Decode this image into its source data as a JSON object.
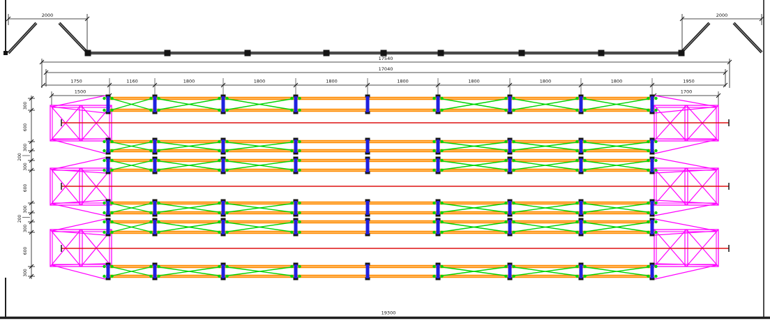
{
  "drawing": {
    "type": "structural-cad-plan",
    "dimensions": {
      "top_left_wing": "2000",
      "top_right_wing": "2000",
      "overall_top": "17540",
      "overall_second": "17040",
      "bays": [
        "1750",
        "1160",
        "1800",
        "1800",
        "1800",
        "1800",
        "1800",
        "1800",
        "1800",
        "1950"
      ],
      "left_sub": "1500",
      "right_sub": "1700",
      "bottom_overall": "19300",
      "vertical_chain": [
        "300",
        "600",
        "300",
        "200",
        "300",
        "600",
        "300",
        "200",
        "300",
        "600",
        "300"
      ]
    },
    "colors": {
      "chord": "#ff8a00",
      "chord_core": "#ffd9a3",
      "bracing": "#00d400",
      "post": "#2020dd",
      "cap": "#151515",
      "end_frame": "#ff00ff",
      "axis": "#dd1111",
      "structure": "#1f1f1f",
      "structure_core": "#9a9a9a",
      "dimension": "#111111",
      "background": "#ffffff"
    }
  }
}
